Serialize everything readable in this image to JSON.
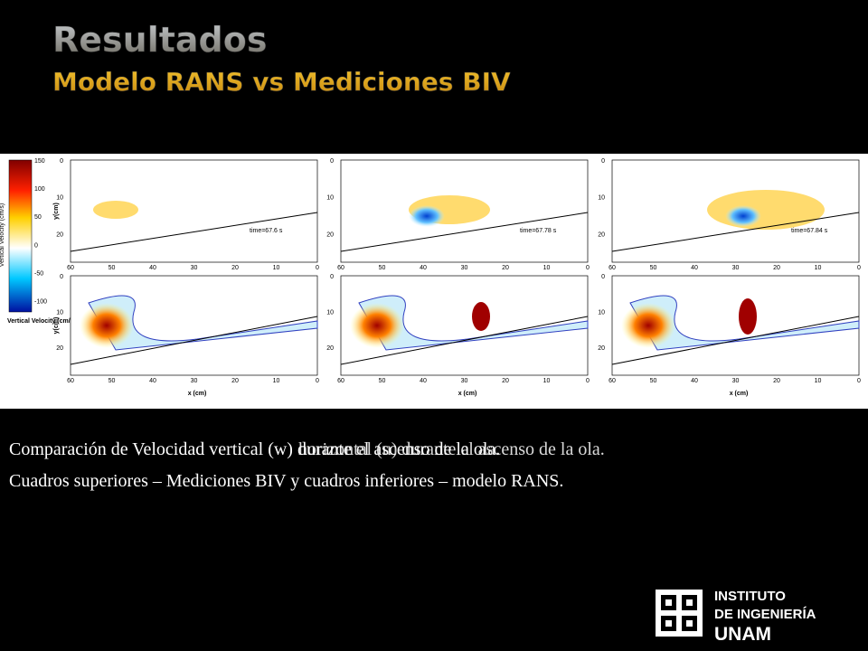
{
  "header": {
    "title": "Resultados",
    "subtitle": "Modelo RANS vs Mediciones BIV"
  },
  "figure": {
    "colorbar": {
      "label": "Vertical Velocity (cm/s)",
      "ticks": [
        "150",
        "100",
        "50",
        "0",
        "-50",
        "-100"
      ]
    },
    "y_label": "y(cm)",
    "x_label": "x (cm)",
    "y_ticks": [
      "0",
      "10",
      "20"
    ],
    "x_ticks": [
      "60",
      "50",
      "40",
      "30",
      "20",
      "10",
      "0"
    ],
    "times": [
      "time=67.6 s",
      "time=67.78 s",
      "time=67.84 s"
    ]
  },
  "caption": {
    "line1": "Comparación de Velocidad vertical (w) durante el ascenso de la ola.",
    "line1_overlay": "horizontal (u) durante el ascenso de la ola.",
    "line2": "Cuadros superiores – Mediciones BIV y cuadros inferiores – modelo RANS."
  },
  "logo": {
    "line1": "INSTITUTO",
    "line2": "DE INGENIERÍA",
    "line3": "UNAM"
  }
}
